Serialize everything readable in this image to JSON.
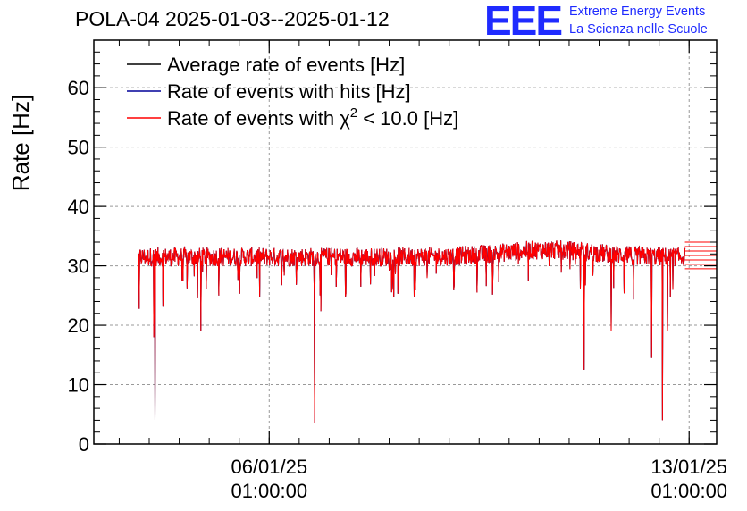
{
  "title": "POLA-04 2025-01-03--2025-01-12",
  "logo": {
    "mark": "EEE",
    "line1": "Extreme Energy Events",
    "line2": "La Scienza nelle Scuole",
    "color": "#1f2bff"
  },
  "chart_data": {
    "type": "line",
    "ylabel": "Rate [Hz]",
    "ylim": [
      0,
      68
    ],
    "yticks": [
      0,
      10,
      20,
      30,
      40,
      50,
      60
    ],
    "xlim": [
      "2025-01-03T02:50:00",
      "2025-01-13T12:00:00"
    ],
    "xticks": [
      {
        "date": "2025-01-06T01:00:00",
        "label_line1": "06/01/25",
        "label_line2": "01:00:00"
      },
      {
        "date": "2025-01-13T01:00:00",
        "label_line1": "13/01/25",
        "label_line2": "01:00:00"
      }
    ],
    "grid": true,
    "legend_position": "top-left",
    "series": [
      {
        "name": "Average rate of events [Hz]",
        "color": "#000000",
        "approx_mean": 31.5
      },
      {
        "name": "Rate of events with hits [Hz]",
        "color": "#000099",
        "approx_mean": 31.5
      },
      {
        "name": "Rate of events with χ² < 10.0 [Hz]",
        "name_base": "Rate of events with χ",
        "name_sup": "2",
        "name_tail": " < 10.0 [Hz]",
        "color": "#ff0000",
        "approx_mean": 31.5,
        "approx_band": [
          29.5,
          34
        ]
      }
    ],
    "data_start": "2025-01-03T20:50:00",
    "data_end": "2025-01-12T23:20:00",
    "flat_extension_end": "2025-01-13T12:00:00",
    "notable_dips": [
      {
        "x": "2025-01-04T03:20:00",
        "y": 4
      },
      {
        "x": "2025-01-04T02:50:00",
        "y": 18
      },
      {
        "x": "2025-01-04T21:40:00",
        "y": 19
      },
      {
        "x": "2025-01-06T19:10:00",
        "y": 3.5
      },
      {
        "x": "2025-01-11T07:00:00",
        "y": 12.5
      },
      {
        "x": "2025-01-11T17:50:00",
        "y": 19
      },
      {
        "x": "2025-01-12T10:00:00",
        "y": 14.5
      },
      {
        "x": "2025-01-12T14:20:00",
        "y": 4
      },
      {
        "x": "2025-01-12T16:20:00",
        "y": 19
      }
    ]
  }
}
